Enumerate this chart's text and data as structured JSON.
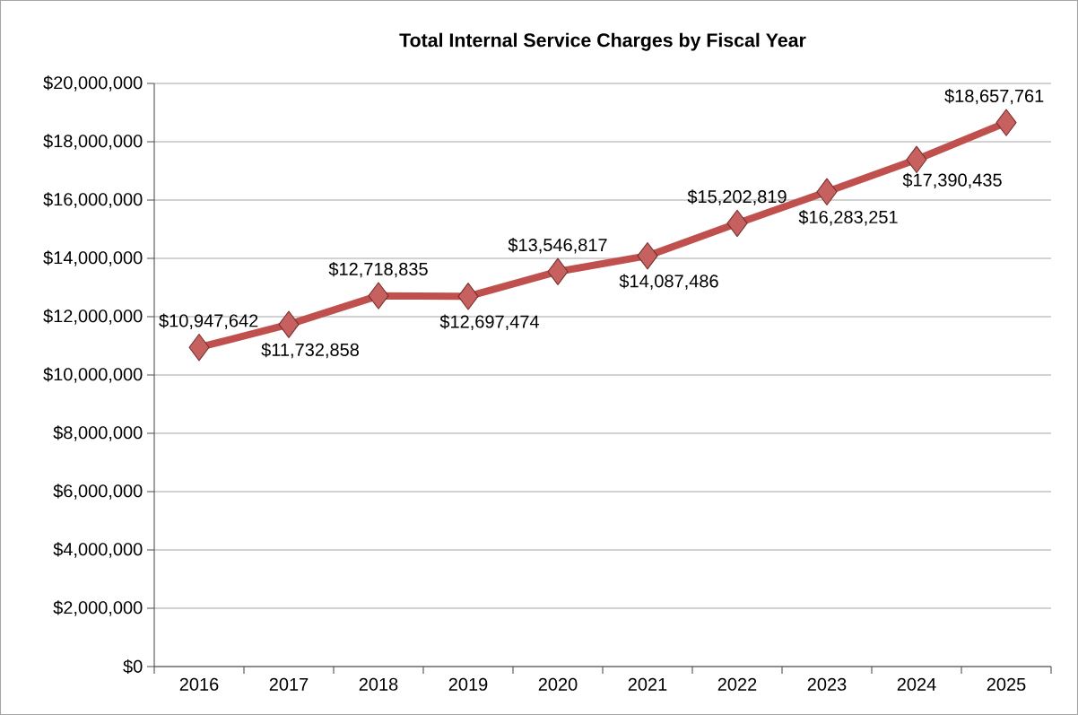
{
  "chart_data": {
    "type": "line",
    "title": "Total Internal Service Charges by Fiscal Year",
    "categories": [
      "2016",
      "2017",
      "2018",
      "2019",
      "2020",
      "2021",
      "2022",
      "2023",
      "2024",
      "2025"
    ],
    "series": [
      {
        "color": "#c0504d",
        "values": [
          10947642,
          11732858,
          12718835,
          12697474,
          13546817,
          14087486,
          15202819,
          16283251,
          17390435,
          18657761
        ],
        "value_labels": [
          "$10,947,642",
          "$11,732,858",
          "$12,718,835",
          "$12,697,474",
          "$13,546,817",
          "$14,087,486",
          "$15,202,819",
          "$16,283,251",
          "$17,390,435",
          "$18,657,761"
        ]
      }
    ],
    "ylim": [
      0,
      20000000
    ],
    "yticks": [
      {
        "value": 0,
        "label": "$0"
      },
      {
        "value": 2000000,
        "label": "$2,000,000"
      },
      {
        "value": 4000000,
        "label": "$4,000,000"
      },
      {
        "value": 6000000,
        "label": "$6,000,000"
      },
      {
        "value": 8000000,
        "label": "$8,000,000"
      },
      {
        "value": 10000000,
        "label": "$10,000,000"
      },
      {
        "value": 12000000,
        "label": "$12,000,000"
      },
      {
        "value": 14000000,
        "label": "$14,000,000"
      },
      {
        "value": 16000000,
        "label": "$16,000,000"
      },
      {
        "value": 18000000,
        "label": "$18,000,000"
      },
      {
        "value": 20000000,
        "label": "$20,000,000"
      }
    ],
    "grid": "y",
    "marker": "diamond",
    "line_style": "solid"
  }
}
